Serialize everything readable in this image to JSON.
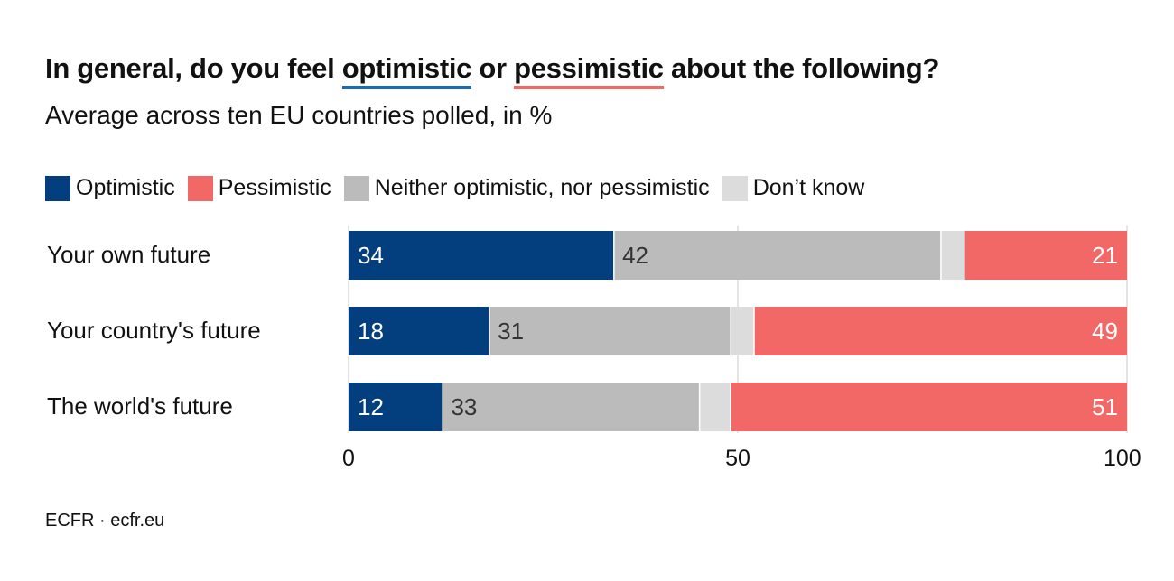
{
  "title": {
    "pre": "In general, do you feel ",
    "opt": "optimistic",
    "mid": " or ",
    "pes": "pessimistic",
    "post": " about the following?"
  },
  "subtitle": "Average across ten EU countries polled, in %",
  "source": "ECFR · ecfr.eu",
  "colors": {
    "optimistic": "#033f7f",
    "pessimistic": "#f26866",
    "neither": "#bbbbbb",
    "dont_know": "#dcdcdc",
    "grid": "#e4e4e4"
  },
  "chart_data": {
    "type": "bar",
    "orientation": "horizontal",
    "stacked": true,
    "categories": [
      "Your own future",
      "Your country's future",
      "The world's future"
    ],
    "series": [
      {
        "name": "Optimistic",
        "values": [
          34,
          18,
          12
        ]
      },
      {
        "name": "Neither optimistic, nor pessimistic",
        "values": [
          42,
          31,
          33
        ]
      },
      {
        "name": "Don’t know",
        "values": [
          3,
          3,
          4
        ]
      },
      {
        "name": "Pessimistic",
        "values": [
          21,
          49,
          51
        ]
      }
    ],
    "legend_order": [
      "Optimistic",
      "Pessimistic",
      "Neither optimistic, nor pessimistic",
      "Don’t know"
    ],
    "xlim": [
      0,
      100
    ],
    "xticks": [
      "0",
      "50",
      "100"
    ],
    "legend_placement": "top-left",
    "grid": true
  }
}
